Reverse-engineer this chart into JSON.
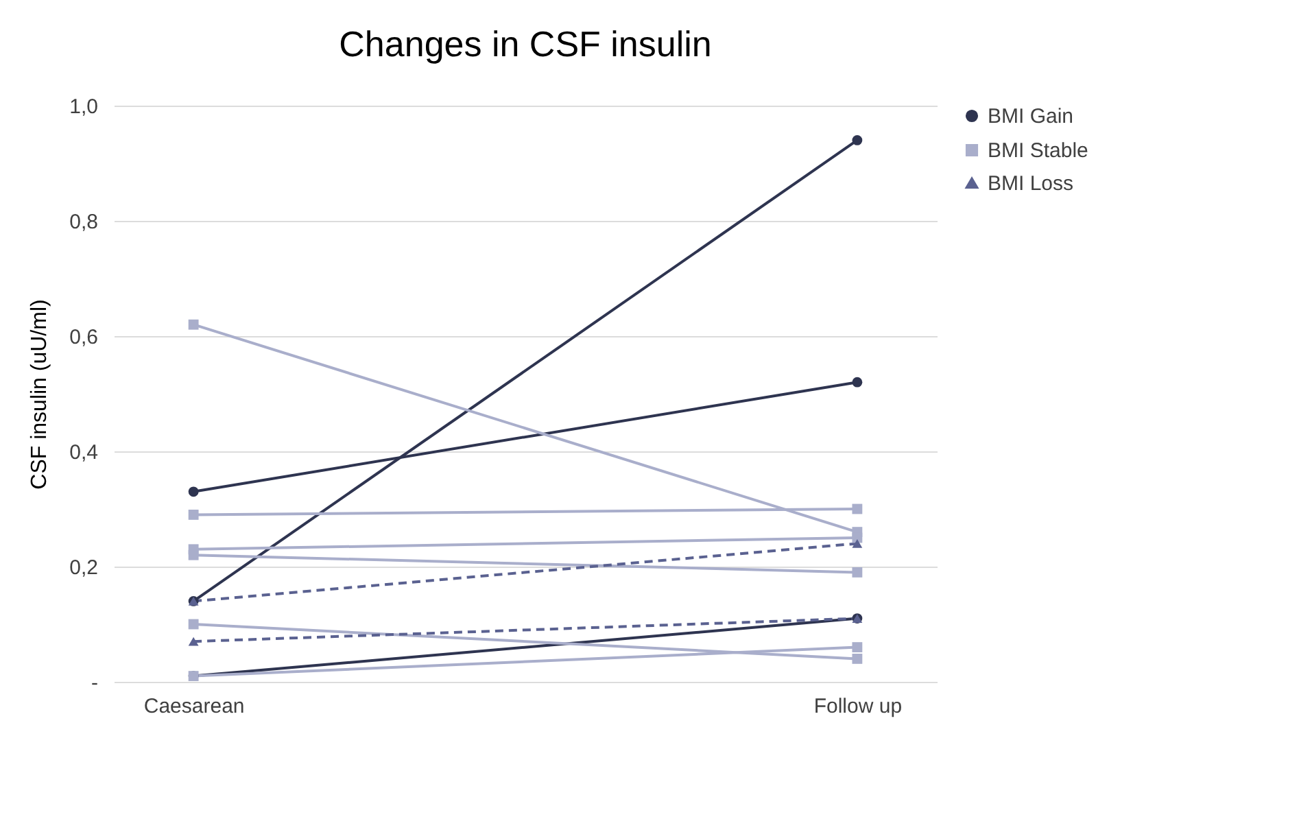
{
  "chart_data": {
    "type": "line",
    "title": "Changes in CSF insulin",
    "ylabel": "CSF insulin (uU/ml)",
    "categories": [
      "Caesarean",
      "Follow up"
    ],
    "series": [
      {
        "name": "BMI Gain",
        "color": "#2e3450",
        "marker": "circle",
        "line_style": "solid",
        "values": [
          0.33,
          0.52
        ]
      },
      {
        "color": "#2e3450",
        "marker": "circle",
        "line_style": "solid",
        "values": [
          0.14,
          0.94
        ]
      },
      {
        "color": "#2e3450",
        "marker": "circle",
        "line_style": "solid",
        "values": [
          0.01,
          0.11
        ]
      },
      {
        "name": "BMI Stable",
        "color": "#a9aecb",
        "marker": "square",
        "line_style": "solid",
        "values": [
          0.62,
          0.26
        ]
      },
      {
        "color": "#a9aecb",
        "marker": "square",
        "line_style": "solid",
        "values": [
          0.29,
          0.3
        ]
      },
      {
        "color": "#a9aecb",
        "marker": "square",
        "line_style": "solid",
        "values": [
          0.23,
          0.25
        ]
      },
      {
        "color": "#a9aecb",
        "marker": "square",
        "line_style": "solid",
        "values": [
          0.22,
          0.19
        ]
      },
      {
        "color": "#a9aecb",
        "marker": "square",
        "line_style": "solid",
        "values": [
          0.1,
          0.04
        ]
      },
      {
        "color": "#a9aecb",
        "marker": "square",
        "line_style": "solid",
        "values": [
          0.01,
          0.06
        ]
      },
      {
        "name": "BMI Loss",
        "color": "#5a6190",
        "marker": "triangle",
        "line_style": "dashed",
        "values": [
          0.14,
          0.24
        ]
      },
      {
        "color": "#5a6190",
        "marker": "triangle",
        "line_style": "dashed",
        "values": [
          0.07,
          0.11
        ]
      }
    ],
    "ylim": [
      0,
      1.0
    ],
    "yticks": [
      {
        "value": 0,
        "label": "-"
      },
      {
        "value": 0.2,
        "label": "0,2"
      },
      {
        "value": 0.4,
        "label": "0,4"
      },
      {
        "value": 0.6,
        "label": "0,6"
      },
      {
        "value": 0.8,
        "label": "0,8"
      },
      {
        "value": 1.0,
        "label": "1,0"
      }
    ],
    "grid": "y",
    "legend": "top right"
  }
}
